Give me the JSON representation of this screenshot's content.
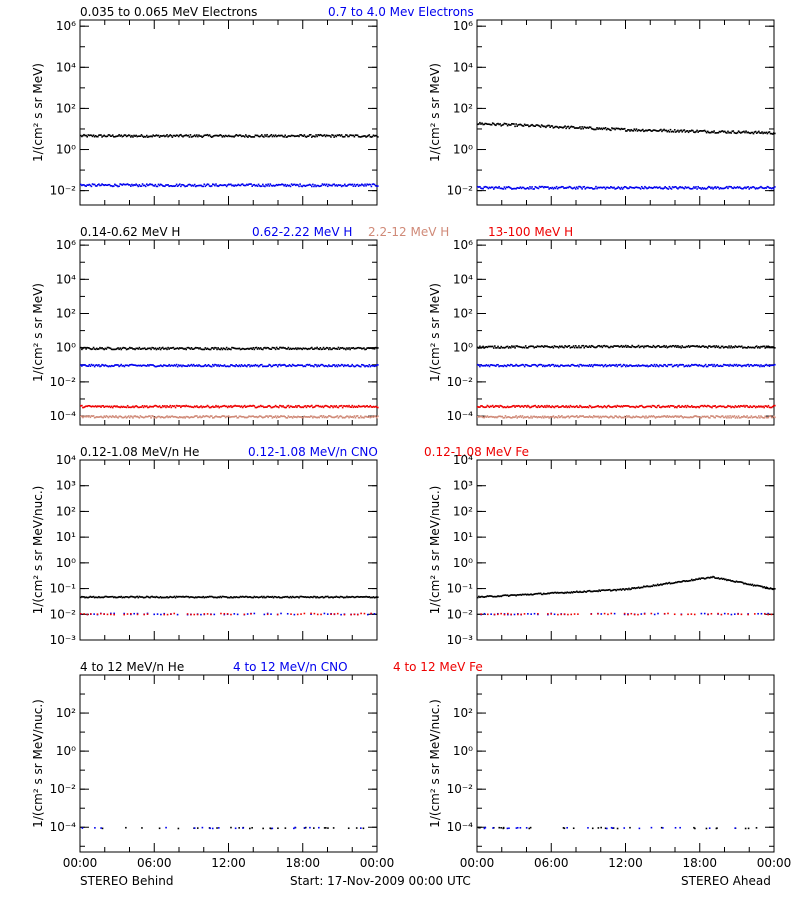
{
  "colors": {
    "black": "#000000",
    "blue": "#0000ee",
    "tan": "#d08a78",
    "red": "#ee0000"
  },
  "footer": {
    "left": "STEREO Behind",
    "center": "Start: 17-Nov-2009 00:00 UTC",
    "right": "STEREO Ahead"
  },
  "x_ticks": [
    "00:00",
    "06:00",
    "12:00",
    "18:00",
    "00:00"
  ],
  "chart_data": [
    {
      "type": "scatter",
      "spacecraft": "STEREO Behind",
      "panel_row": 1,
      "ylabel": "1/(cm² s sr MeV)",
      "yscale": "log",
      "ylim": [
        0.002,
        2000000
      ],
      "y_ticks": [
        {
          "value": 0.01,
          "label": "10⁻²"
        },
        {
          "value": 1,
          "label": "10⁰"
        },
        {
          "value": 100,
          "label": "10²"
        },
        {
          "value": 10000,
          "label": "10⁴"
        },
        {
          "value": 1000000,
          "label": "10⁶"
        }
      ],
      "xlabel": "",
      "xlim": [
        "00:00",
        "24:00"
      ],
      "series": [
        {
          "name": "0.035 to 0.065 MeV Electrons",
          "color": "#000000",
          "values": [
            {
              "x": "00:00",
              "y": 5
            },
            {
              "x": "12:00",
              "y": 5
            },
            {
              "x": "24:00",
              "y": 5
            }
          ]
        },
        {
          "name": "0.7 to 4.0 Mev Electrons",
          "color": "#0000ee",
          "values": [
            {
              "x": "00:00",
              "y": 0.02
            },
            {
              "x": "12:00",
              "y": 0.02
            },
            {
              "x": "24:00",
              "y": 0.02
            }
          ]
        }
      ]
    },
    {
      "type": "scatter",
      "spacecraft": "STEREO Ahead",
      "panel_row": 1,
      "ylabel": "1/(cm² s sr MeV)",
      "yscale": "log",
      "ylim": [
        0.002,
        2000000
      ],
      "y_ticks": [
        {
          "value": 0.01,
          "label": "10⁻²"
        },
        {
          "value": 1,
          "label": "10⁰"
        },
        {
          "value": 100,
          "label": "10²"
        },
        {
          "value": 10000,
          "label": "10⁴"
        },
        {
          "value": 1000000,
          "label": "10⁶"
        }
      ],
      "xlabel": "",
      "xlim": [
        "00:00",
        "24:00"
      ],
      "series": [
        {
          "name": "0.035 to 0.065 MeV Electrons",
          "color": "#000000",
          "values": [
            {
              "x": "00:00",
              "y": 20
            },
            {
              "x": "12:00",
              "y": 10
            },
            {
              "x": "24:00",
              "y": 7
            }
          ]
        },
        {
          "name": "0.7 to 4.0 Mev Electrons",
          "color": "#0000ee",
          "values": [
            {
              "x": "00:00",
              "y": 0.015
            },
            {
              "x": "12:00",
              "y": 0.015
            },
            {
              "x": "24:00",
              "y": 0.015
            }
          ]
        }
      ]
    },
    {
      "type": "scatter",
      "spacecraft": "STEREO Behind",
      "panel_row": 2,
      "ylabel": "1/(cm² s sr MeV)",
      "yscale": "log",
      "ylim": [
        3e-05,
        2000000
      ],
      "y_ticks": [
        {
          "value": 0.0001,
          "label": "10⁻⁴"
        },
        {
          "value": 0.01,
          "label": "10⁻²"
        },
        {
          "value": 1,
          "label": "10⁰"
        },
        {
          "value": 100,
          "label": "10²"
        },
        {
          "value": 10000,
          "label": "10⁴"
        },
        {
          "value": 1000000,
          "label": "10⁶"
        }
      ],
      "xlabel": "",
      "xlim": [
        "00:00",
        "24:00"
      ],
      "series": [
        {
          "name": "0.14-0.62 MeV H",
          "color": "#000000",
          "values": [
            {
              "x": "00:00",
              "y": 1
            },
            {
              "x": "12:00",
              "y": 1
            },
            {
              "x": "24:00",
              "y": 1
            }
          ]
        },
        {
          "name": "0.62-2.22 MeV H",
          "color": "#0000ee",
          "values": [
            {
              "x": "00:00",
              "y": 0.1
            },
            {
              "x": "12:00",
              "y": 0.1
            },
            {
              "x": "24:00",
              "y": 0.1
            }
          ]
        },
        {
          "name": "2.2-12 MeV H",
          "color": "#d08a78",
          "values": [
            {
              "x": "00:00",
              "y": 0.0001
            },
            {
              "x": "12:00",
              "y": 0.0001
            },
            {
              "x": "24:00",
              "y": 0.0001
            }
          ]
        },
        {
          "name": "13-100 MeV H",
          "color": "#ee0000",
          "values": [
            {
              "x": "00:00",
              "y": 0.0004
            },
            {
              "x": "12:00",
              "y": 0.0004
            },
            {
              "x": "24:00",
              "y": 0.0004
            }
          ]
        }
      ]
    },
    {
      "type": "scatter",
      "spacecraft": "STEREO Ahead",
      "panel_row": 2,
      "ylabel": "1/(cm² s sr MeV)",
      "yscale": "log",
      "ylim": [
        3e-05,
        2000000
      ],
      "y_ticks": [
        {
          "value": 0.0001,
          "label": "10⁻⁴"
        },
        {
          "value": 0.01,
          "label": "10⁻²"
        },
        {
          "value": 1,
          "label": "10⁰"
        },
        {
          "value": 100,
          "label": "10²"
        },
        {
          "value": 10000,
          "label": "10⁴"
        },
        {
          "value": 1000000,
          "label": "10⁶"
        }
      ],
      "xlabel": "",
      "xlim": [
        "00:00",
        "24:00"
      ],
      "series": [
        {
          "name": "0.14-0.62 MeV H",
          "color": "#000000",
          "values": [
            {
              "x": "00:00",
              "y": 1.2
            },
            {
              "x": "12:00",
              "y": 1.3
            },
            {
              "x": "24:00",
              "y": 1.2
            }
          ]
        },
        {
          "name": "0.62-2.22 MeV H",
          "color": "#0000ee",
          "values": [
            {
              "x": "00:00",
              "y": 0.1
            },
            {
              "x": "12:00",
              "y": 0.1
            },
            {
              "x": "24:00",
              "y": 0.1
            }
          ]
        },
        {
          "name": "2.2-12 MeV H",
          "color": "#d08a78",
          "values": [
            {
              "x": "00:00",
              "y": 0.0001
            },
            {
              "x": "12:00",
              "y": 0.0001
            },
            {
              "x": "24:00",
              "y": 0.0001
            }
          ]
        },
        {
          "name": "13-100 MeV H",
          "color": "#ee0000",
          "values": [
            {
              "x": "00:00",
              "y": 0.0004
            },
            {
              "x": "12:00",
              "y": 0.0004
            },
            {
              "x": "24:00",
              "y": 0.0004
            }
          ]
        }
      ]
    },
    {
      "type": "scatter",
      "spacecraft": "STEREO Behind",
      "panel_row": 3,
      "ylabel": "1/(cm² s sr MeV/nuc.)",
      "yscale": "log",
      "ylim": [
        0.001,
        10000
      ],
      "y_ticks": [
        {
          "value": 0.001,
          "label": "10⁻³"
        },
        {
          "value": 0.01,
          "label": "10⁻²"
        },
        {
          "value": 0.1,
          "label": "10⁻¹"
        },
        {
          "value": 1,
          "label": "10⁰"
        },
        {
          "value": 10,
          "label": "10¹"
        },
        {
          "value": 100,
          "label": "10²"
        },
        {
          "value": 1000,
          "label": "10³"
        },
        {
          "value": 10000,
          "label": "10⁴"
        }
      ],
      "xlabel": "",
      "xlim": [
        "00:00",
        "24:00"
      ],
      "series": [
        {
          "name": "0.12-1.08 MeV/n He",
          "color": "#000000",
          "values": [
            {
              "x": "00:00",
              "y": 0.05
            },
            {
              "x": "12:00",
              "y": 0.05
            },
            {
              "x": "24:00",
              "y": 0.05
            }
          ]
        },
        {
          "name": "0.12-1.08 MeV/n CNO",
          "color": "#0000ee",
          "values": [
            {
              "x": "00:00",
              "y": 0.011
            },
            {
              "x": "12:00",
              "y": 0.011
            },
            {
              "x": "24:00",
              "y": 0.011
            }
          ]
        },
        {
          "name": "0.12-1.08 MeV Fe",
          "color": "#ee0000",
          "values": [
            {
              "x": "00:00",
              "y": 0.011
            },
            {
              "x": "12:00",
              "y": 0.011
            },
            {
              "x": "24:00",
              "y": 0.011
            }
          ]
        }
      ]
    },
    {
      "type": "scatter",
      "spacecraft": "STEREO Ahead",
      "panel_row": 3,
      "ylabel": "1/(cm² s sr MeV/nuc.)",
      "yscale": "log",
      "ylim": [
        0.001,
        10000
      ],
      "y_ticks": [
        {
          "value": 0.001,
          "label": "10⁻³"
        },
        {
          "value": 0.01,
          "label": "10⁻²"
        },
        {
          "value": 0.1,
          "label": "10⁻¹"
        },
        {
          "value": 1,
          "label": "10⁰"
        },
        {
          "value": 10,
          "label": "10¹"
        },
        {
          "value": 100,
          "label": "10²"
        },
        {
          "value": 1000,
          "label": "10³"
        },
        {
          "value": 10000,
          "label": "10⁴"
        }
      ],
      "xlabel": "",
      "xlim": [
        "00:00",
        "24:00"
      ],
      "series": [
        {
          "name": "0.12-1.08 MeV/n He",
          "color": "#000000",
          "values": [
            {
              "x": "00:00",
              "y": 0.05
            },
            {
              "x": "12:00",
              "y": 0.1
            },
            {
              "x": "19:00",
              "y": 0.3
            },
            {
              "x": "24:00",
              "y": 0.1
            }
          ]
        },
        {
          "name": "0.12-1.08 MeV/n CNO",
          "color": "#0000ee",
          "values": [
            {
              "x": "00:00",
              "y": 0.011
            },
            {
              "x": "12:00",
              "y": 0.011
            },
            {
              "x": "24:00",
              "y": 0.011
            }
          ]
        },
        {
          "name": "0.12-1.08 MeV Fe",
          "color": "#ee0000",
          "values": [
            {
              "x": "00:00",
              "y": 0.011
            },
            {
              "x": "12:00",
              "y": 0.011
            },
            {
              "x": "24:00",
              "y": 0.011
            }
          ]
        }
      ]
    },
    {
      "type": "scatter",
      "spacecraft": "STEREO Behind",
      "panel_row": 4,
      "ylabel": "1/(cm² s sr MeV/nuc.)",
      "yscale": "log",
      "ylim": [
        5e-06,
        10000
      ],
      "y_ticks": [
        {
          "value": 0.0001,
          "label": "10⁻⁴"
        },
        {
          "value": 0.01,
          "label": "10⁻²"
        },
        {
          "value": 1,
          "label": "10⁰"
        },
        {
          "value": 100,
          "label": "10²"
        }
      ],
      "xlabel": "",
      "xlim": [
        "00:00",
        "24:00"
      ],
      "series": [
        {
          "name": "4 to 12 MeV/n He",
          "color": "#000000",
          "values": [
            {
              "x": "00:00",
              "y": 0.0001
            },
            {
              "x": "12:00",
              "y": 0.0001
            },
            {
              "x": "24:00",
              "y": 0.0001
            }
          ]
        },
        {
          "name": "4 to 12 MeV/n CNO",
          "color": "#0000ee",
          "values": [
            {
              "x": "08:00",
              "y": 0.0001
            },
            {
              "x": "16:00",
              "y": 0.0001
            }
          ]
        },
        {
          "name": "4 to 12 MeV Fe",
          "color": "#ee0000",
          "values": []
        }
      ]
    },
    {
      "type": "scatter",
      "spacecraft": "STEREO Ahead",
      "panel_row": 4,
      "ylabel": "1/(cm² s sr MeV/nuc.)",
      "yscale": "log",
      "ylim": [
        5e-06,
        10000
      ],
      "y_ticks": [
        {
          "value": 0.0001,
          "label": "10⁻⁴"
        },
        {
          "value": 0.01,
          "label": "10⁻²"
        },
        {
          "value": 1,
          "label": "10⁰"
        },
        {
          "value": 100,
          "label": "10²"
        }
      ],
      "xlabel": "",
      "xlim": [
        "00:00",
        "24:00"
      ],
      "series": [
        {
          "name": "4 to 12 MeV/n He",
          "color": "#000000",
          "values": [
            {
              "x": "00:00",
              "y": 0.0001
            },
            {
              "x": "12:00",
              "y": 0.0001
            },
            {
              "x": "24:00",
              "y": 0.0001
            }
          ]
        },
        {
          "name": "4 to 12 MeV/n CNO",
          "color": "#0000ee",
          "values": [
            {
              "x": "08:00",
              "y": 0.0001
            },
            {
              "x": "20:00",
              "y": 0.0001
            }
          ]
        },
        {
          "name": "4 to 12 MeV Fe",
          "color": "#ee0000",
          "values": []
        }
      ]
    }
  ]
}
